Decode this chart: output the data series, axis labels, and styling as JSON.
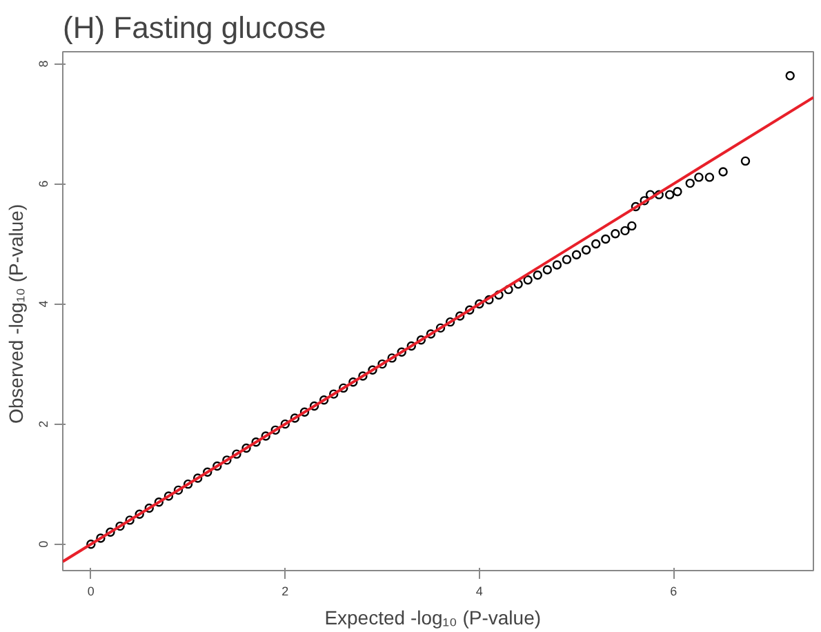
{
  "chart_data": {
    "type": "scatter",
    "title": "(H) Fasting glucose",
    "xlabel": "Expected   -log₁₀ (P-value)",
    "ylabel": "Observed  -log₁₀ (P-value)",
    "xlim": [
      -0.29,
      7.44
    ],
    "ylim": [
      -0.44,
      8.2
    ],
    "xticks": [
      0,
      2,
      4,
      6
    ],
    "yticks": [
      0,
      2,
      4,
      6,
      8
    ],
    "grid": false,
    "marker": "circle",
    "series": [
      {
        "color": "#000000",
        "x": [
          0,
          0.1,
          0.2,
          0.3,
          0.4,
          0.5,
          0.6,
          0.7,
          0.8,
          0.9,
          1.0,
          1.1,
          1.2,
          1.3,
          1.4,
          1.5,
          1.6,
          1.7,
          1.8,
          1.9,
          2.0,
          2.1,
          2.2,
          2.3,
          2.4,
          2.5,
          2.6,
          2.7,
          2.8,
          2.9,
          3.0,
          3.1,
          3.2,
          3.3,
          3.4,
          3.5,
          3.6,
          3.7,
          3.8,
          3.9,
          4.0,
          4.1,
          4.2,
          4.3,
          4.4,
          4.5,
          4.6,
          4.7,
          4.8,
          4.9,
          5.0,
          5.1,
          5.2,
          5.3,
          5.4,
          5.5,
          5.57,
          5.61,
          5.7,
          5.76,
          5.85,
          5.96,
          6.04,
          6.17,
          6.26,
          6.37,
          6.51,
          6.74,
          7.2
        ],
        "values": [
          0,
          0.1,
          0.2,
          0.3,
          0.4,
          0.5,
          0.6,
          0.7,
          0.8,
          0.9,
          1.0,
          1.1,
          1.2,
          1.3,
          1.4,
          1.5,
          1.6,
          1.7,
          1.8,
          1.9,
          2.0,
          2.1,
          2.2,
          2.3,
          2.4,
          2.5,
          2.6,
          2.7,
          2.8,
          2.9,
          3.0,
          3.1,
          3.2,
          3.3,
          3.4,
          3.5,
          3.6,
          3.7,
          3.8,
          3.9,
          4.0,
          4.07,
          4.15,
          4.24,
          4.33,
          4.4,
          4.48,
          4.57,
          4.65,
          4.74,
          4.82,
          4.9,
          5.0,
          5.08,
          5.17,
          5.22,
          5.3,
          5.62,
          5.72,
          5.82,
          5.82,
          5.82,
          5.87,
          6.01,
          6.11,
          6.11,
          6.2,
          6.38,
          7.8
        ]
      },
      {
        "type": "line",
        "color": "#e8202a",
        "line_style": "solid",
        "marker": "none",
        "x": [
          -0.29,
          7.44
        ],
        "values": [
          -0.29,
          7.44
        ]
      }
    ]
  }
}
